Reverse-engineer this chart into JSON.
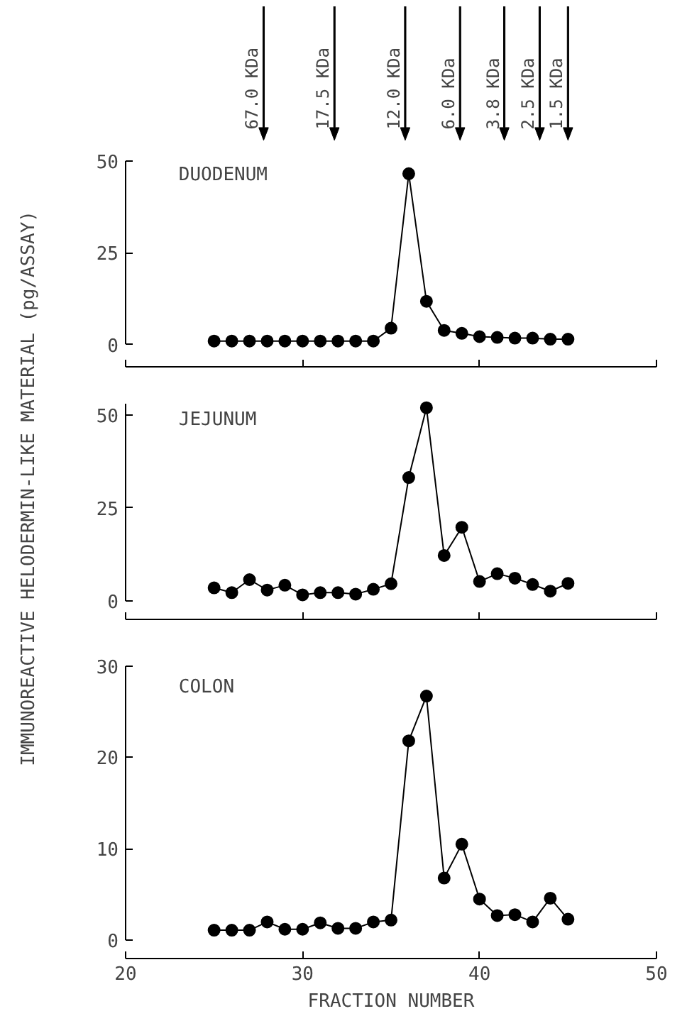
{
  "chart_data": [
    {
      "type": "line",
      "title": "DUODENUM",
      "x": [
        25,
        26,
        27,
        28,
        29,
        30,
        31,
        32,
        33,
        34,
        35,
        36,
        37,
        38,
        39,
        40,
        41,
        42,
        43,
        44,
        45
      ],
      "series": [
        {
          "color": "#000000",
          "values": [
            1,
            1,
            1,
            1,
            1,
            1,
            1,
            1,
            1,
            1,
            4.5,
            46.5,
            11.8,
            3.9,
            3.1,
            2.2,
            2,
            1.8,
            1.8,
            1.5,
            1.5
          ]
        }
      ],
      "xlim": [
        20,
        50
      ],
      "xticks": [
        20,
        30,
        40,
        50
      ],
      "ylim": [
        -6,
        50
      ],
      "yticks": [
        0,
        25,
        50
      ],
      "tick_labels": "y",
      "marker": "circle",
      "line_style": "solid",
      "ref_lines": [
        {
          "axis": "x",
          "value": 27.8,
          "label": "67.0 KDa"
        },
        {
          "axis": "x",
          "value": 31.8,
          "label": "17.5 KDa"
        },
        {
          "axis": "x",
          "value": 35.8,
          "label": "12.0 KDa"
        },
        {
          "axis": "x",
          "value": 38.9,
          "label": "6.0 KDa"
        },
        {
          "axis": "x",
          "value": 41.4,
          "label": "3.8 KDa"
        },
        {
          "axis": "x",
          "value": 43.4,
          "label": "2.5 KDa"
        },
        {
          "axis": "x",
          "value": 45.0,
          "label": "1.5 KDa"
        }
      ]
    },
    {
      "type": "line",
      "title": "JEJUNUM",
      "ylabel": "IMMUNOREACTIVE HELODERMIN-LIKE MATERIAL (pg/ASSAY)",
      "x": [
        25,
        26,
        27,
        28,
        29,
        30,
        31,
        32,
        33,
        34,
        35,
        36,
        37,
        38,
        39,
        40,
        41,
        42,
        43,
        44,
        45
      ],
      "series": [
        {
          "color": "#000000",
          "values": [
            3.5,
            2.2,
            5.7,
            2.9,
            4.2,
            1.6,
            2.2,
            2.2,
            1.8,
            3.1,
            4.6,
            33.2,
            52,
            12.2,
            19.8,
            5.2,
            7.3,
            6.1,
            4.4,
            2.6,
            4.7
          ]
        }
      ],
      "xlim": [
        20,
        50
      ],
      "xticks": [
        20,
        30,
        40,
        50
      ],
      "ylim": [
        -5,
        53
      ],
      "yticks": [
        0,
        25,
        50
      ],
      "tick_labels": "y",
      "marker": "circle",
      "line_style": "solid"
    },
    {
      "type": "line",
      "title": "COLON",
      "xlabel": "FRACTION NUMBER",
      "x": [
        25,
        26,
        27,
        28,
        29,
        30,
        31,
        32,
        33,
        34,
        35,
        36,
        37,
        38,
        39,
        40,
        41,
        42,
        43,
        44,
        45
      ],
      "series": [
        {
          "color": "#000000",
          "values": [
            1.1,
            1.1,
            1.1,
            2.0,
            1.2,
            1.2,
            1.9,
            1.3,
            1.3,
            2.0,
            2.2,
            21.8,
            26.7,
            6.8,
            10.5,
            4.5,
            2.7,
            2.8,
            2.0,
            4.6,
            2.3
          ]
        }
      ],
      "xlim": [
        20,
        50
      ],
      "xticks": [
        20,
        30,
        40,
        50
      ],
      "ylim": [
        -2,
        30
      ],
      "yticks": [
        0,
        10,
        20,
        30
      ],
      "marker": "circle",
      "line_style": "solid"
    }
  ]
}
